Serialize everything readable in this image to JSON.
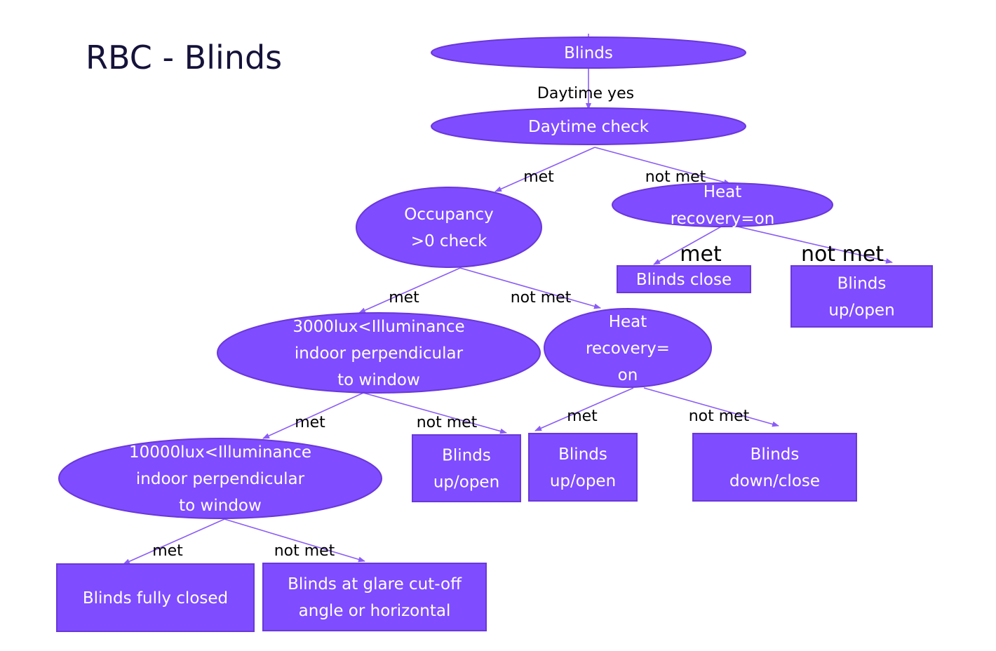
{
  "title": "RBC - Blinds",
  "colors": {
    "node_fill": "#7f4cff",
    "node_stroke": "#6a38d8",
    "edge": "#8a5cf6",
    "title": "#15123a"
  },
  "nodes": [
    {
      "id": "blinds-root",
      "shape": "ellipse",
      "lines": [
        "Blinds"
      ]
    },
    {
      "id": "daytime-check",
      "shape": "ellipse",
      "lines": [
        "Daytime check"
      ]
    },
    {
      "id": "occupancy-check",
      "shape": "ellipse",
      "lines": [
        "Occupancy",
        ">0 check"
      ]
    },
    {
      "id": "heat-recovery-top",
      "shape": "ellipse",
      "lines": [
        "Heat",
        "recovery=on"
      ]
    },
    {
      "id": "blinds-close",
      "shape": "rect",
      "lines": [
        "Blinds close"
      ]
    },
    {
      "id": "blinds-up-open-right",
      "shape": "rect",
      "lines": [
        "Blinds",
        "up/open"
      ]
    },
    {
      "id": "illuminance-3000",
      "shape": "ellipse",
      "lines": [
        "3000lux<Illuminance",
        "indoor perpendicular",
        "to window"
      ]
    },
    {
      "id": "heat-recovery-mid",
      "shape": "ellipse",
      "lines": [
        "Heat",
        "recovery=",
        "on"
      ]
    },
    {
      "id": "illuminance-10000",
      "shape": "ellipse",
      "lines": [
        "10000lux<Illuminance",
        "indoor perpendicular",
        "to window"
      ]
    },
    {
      "id": "blinds-up-open-a",
      "shape": "rect",
      "lines": [
        "Blinds",
        "up/open"
      ]
    },
    {
      "id": "blinds-up-open-b",
      "shape": "rect",
      "lines": [
        "Blinds",
        "up/open"
      ]
    },
    {
      "id": "blinds-down-close",
      "shape": "rect",
      "lines": [
        "Blinds",
        "down/close"
      ]
    },
    {
      "id": "blinds-fully-closed",
      "shape": "rect",
      "lines": [
        "Blinds fully closed"
      ]
    },
    {
      "id": "blinds-glare",
      "shape": "rect",
      "lines": [
        "Blinds at glare cut-off",
        "angle or horizontal"
      ]
    }
  ],
  "edges": [
    {
      "from": "blinds-root",
      "to": "daytime-check",
      "label": "Daytime yes"
    },
    {
      "from": "daytime-check",
      "to": "occupancy-check",
      "label": "met"
    },
    {
      "from": "daytime-check",
      "to": "heat-recovery-top",
      "label": "not met"
    },
    {
      "from": "heat-recovery-top",
      "to": "blinds-close",
      "label": "met"
    },
    {
      "from": "heat-recovery-top",
      "to": "blinds-up-open-right",
      "label": "not met"
    },
    {
      "from": "occupancy-check",
      "to": "illuminance-3000",
      "label": "met"
    },
    {
      "from": "occupancy-check",
      "to": "heat-recovery-mid",
      "label": "not met"
    },
    {
      "from": "illuminance-3000",
      "to": "illuminance-10000",
      "label": "met"
    },
    {
      "from": "illuminance-3000",
      "to": "blinds-up-open-a",
      "label": "not met"
    },
    {
      "from": "heat-recovery-mid",
      "to": "blinds-up-open-b",
      "label": "met"
    },
    {
      "from": "heat-recovery-mid",
      "to": "blinds-down-close",
      "label": "not met"
    },
    {
      "from": "illuminance-10000",
      "to": "blinds-fully-closed",
      "label": "met"
    },
    {
      "from": "illuminance-10000",
      "to": "blinds-glare",
      "label": "not met"
    }
  ]
}
